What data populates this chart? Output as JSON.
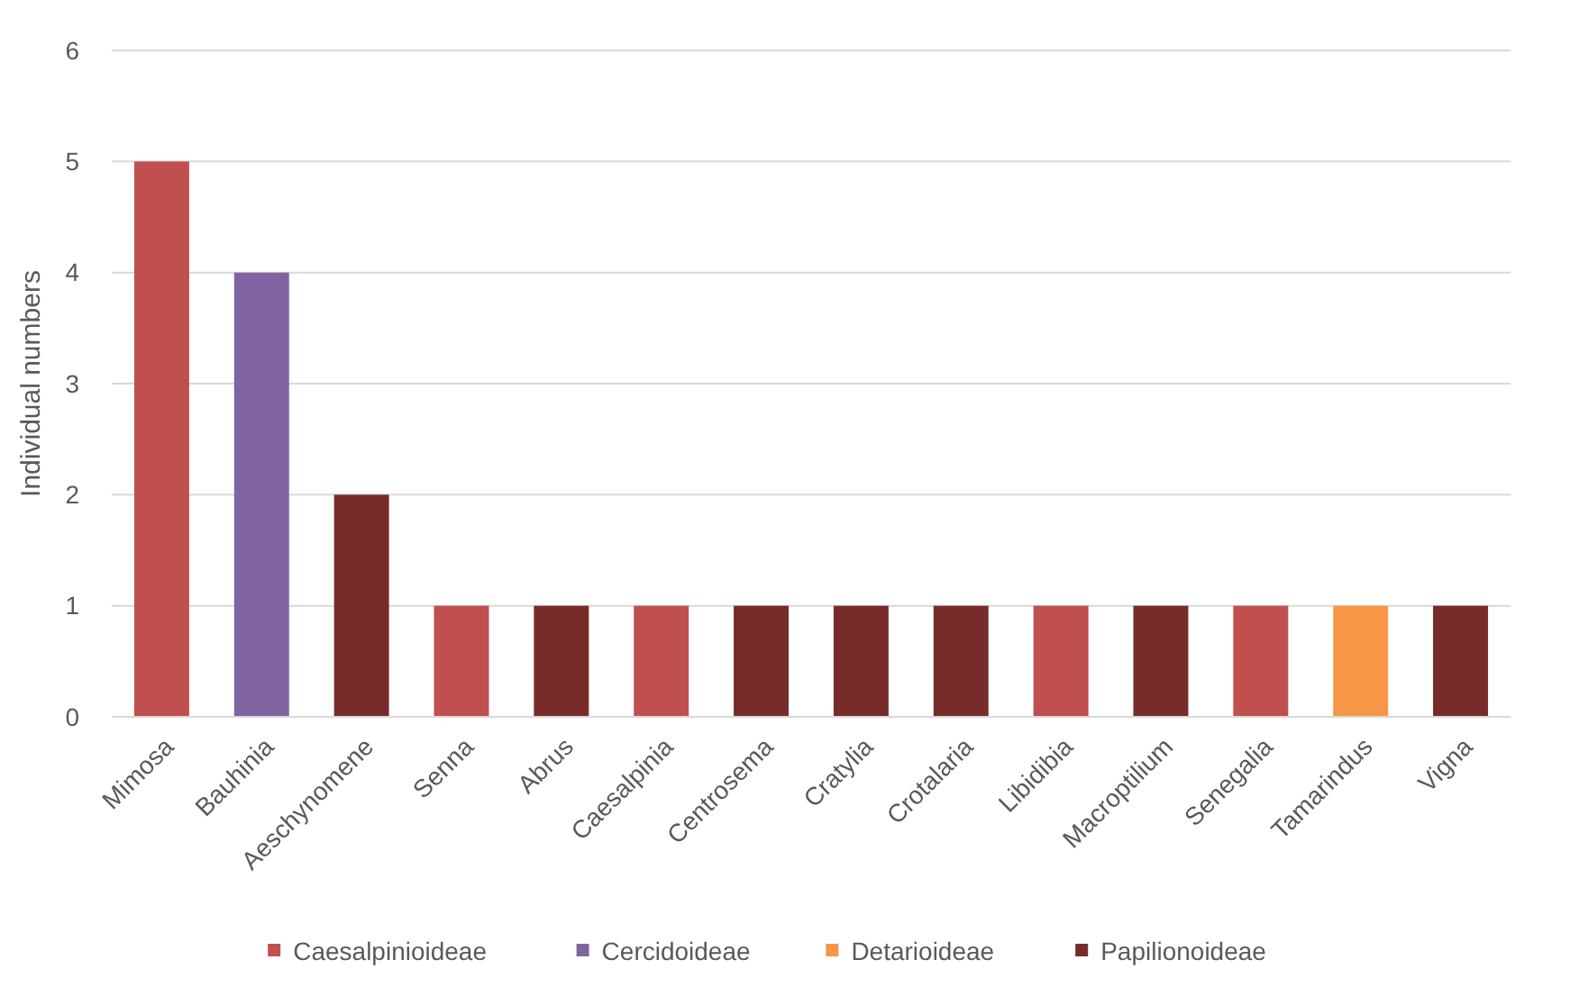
{
  "chart_data": {
    "type": "bar",
    "ylabel": "Individual numbers",
    "categories": [
      "Mimosa",
      "Bauhinia",
      "Aeschynomene",
      "Senna",
      "Abrus",
      "Caesalpinia",
      "Centrosema",
      "Cratylia",
      "Crotalaria",
      "Libidibia",
      "Macroptilium",
      "Senegalia",
      "Tamarindus",
      "Vigna"
    ],
    "series": [
      {
        "name": "Caesalpinioideae",
        "color": "#c0504d",
        "values": [
          5,
          null,
          null,
          1,
          null,
          1,
          null,
          null,
          null,
          1,
          null,
          1,
          null,
          null
        ]
      },
      {
        "name": "Cercidoideae",
        "color": "#8064a2",
        "values": [
          null,
          4,
          null,
          null,
          null,
          null,
          null,
          null,
          null,
          null,
          null,
          null,
          null,
          null
        ]
      },
      {
        "name": "Detarioideae",
        "color": "#f79646",
        "values": [
          null,
          null,
          null,
          null,
          null,
          null,
          null,
          null,
          null,
          null,
          null,
          null,
          1,
          null
        ]
      },
      {
        "name": "Papilionoideae",
        "color": "#772c2a",
        "values": [
          null,
          null,
          2,
          null,
          1,
          null,
          1,
          1,
          1,
          null,
          1,
          null,
          null,
          1
        ]
      }
    ],
    "stacked": true,
    "ylim": [
      0,
      6
    ],
    "yticks": [
      0,
      1,
      2,
      3,
      4,
      5,
      6
    ],
    "grid": "y",
    "legend": "bottom"
  }
}
